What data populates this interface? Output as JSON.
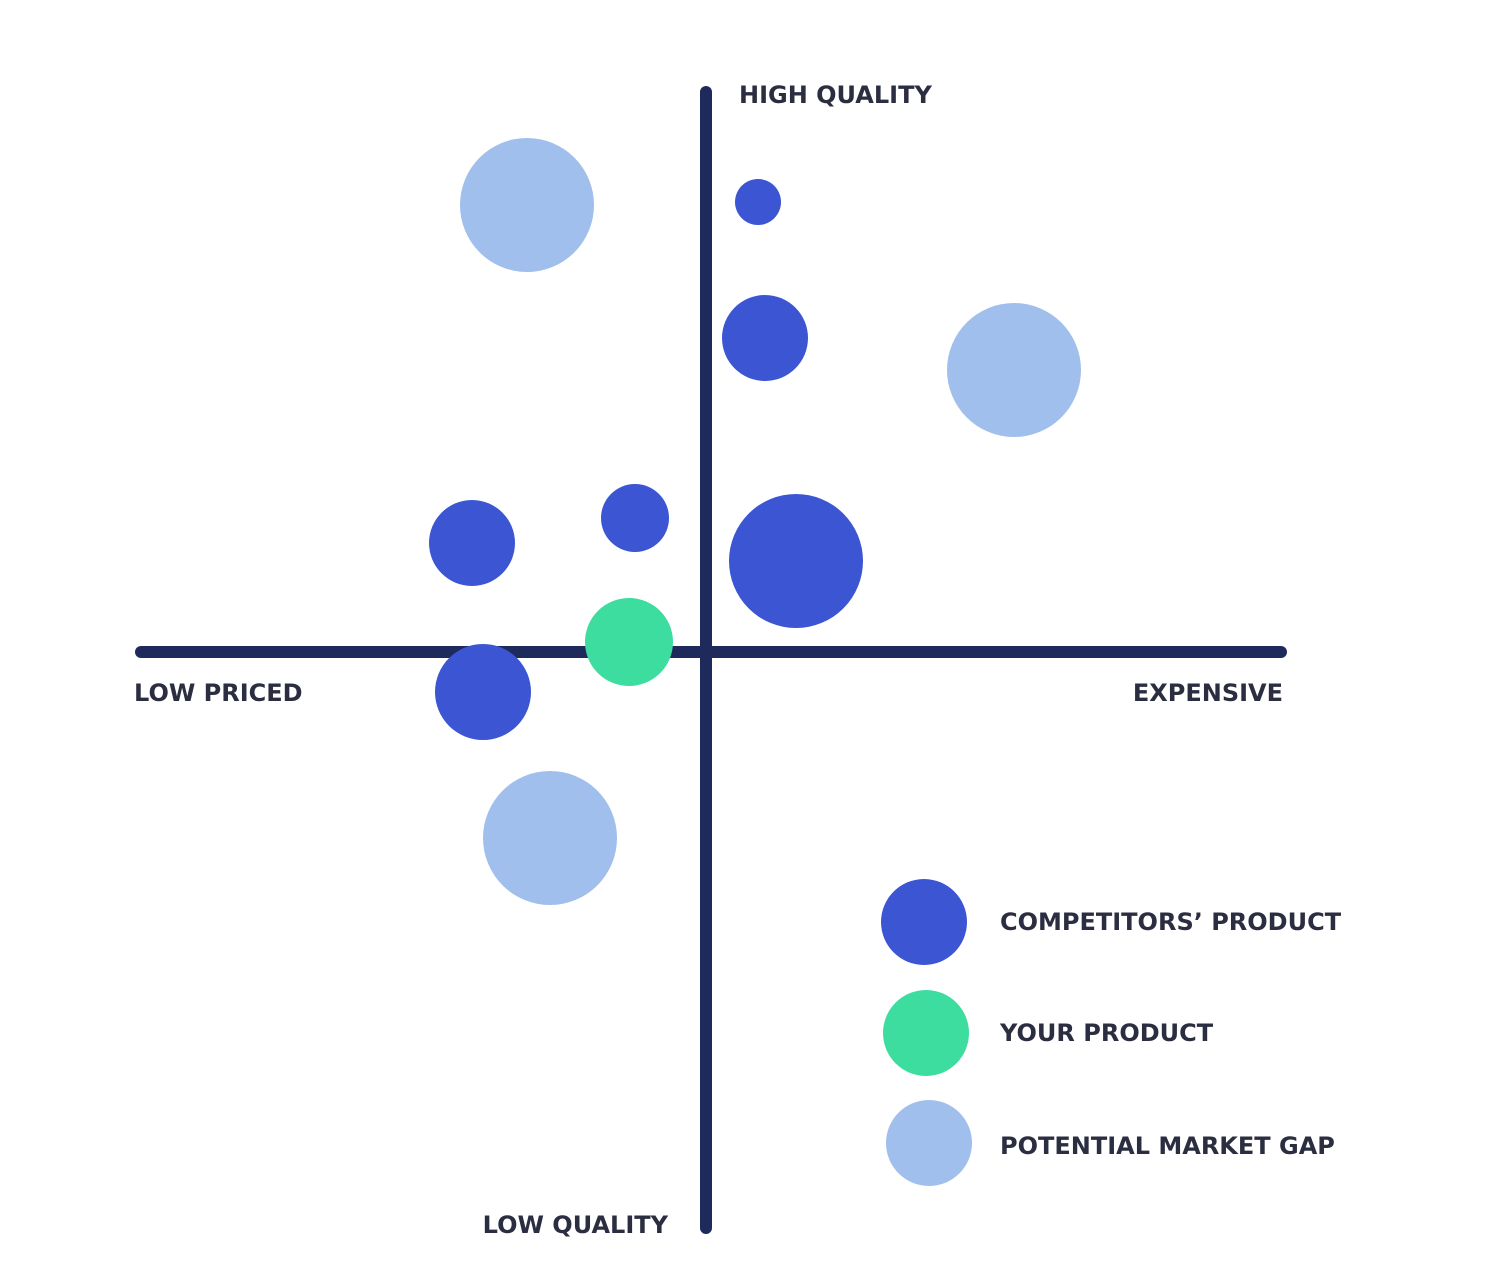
{
  "axes": {
    "top": "HIGH QUALITY",
    "bottom": "LOW QUALITY",
    "left": "LOW PRICED",
    "right": "EXPENSIVE"
  },
  "legend": [
    {
      "label": "COMPETITORS’ PRODUCT"
    },
    {
      "label": "YOUR PRODUCT"
    },
    {
      "label": "POTENTIAL MARKET GAP"
    }
  ]
}
